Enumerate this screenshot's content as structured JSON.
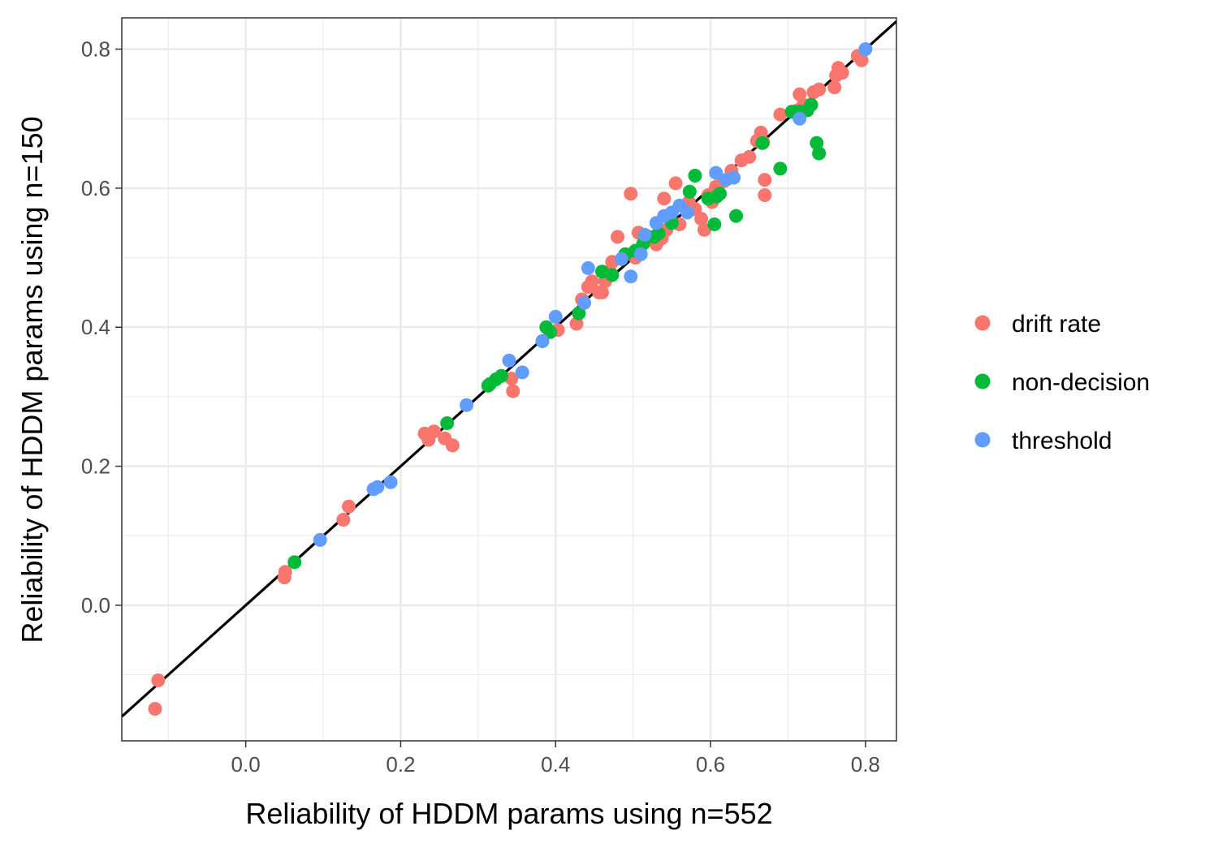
{
  "chart_data": {
    "type": "scatter",
    "xlabel": "Reliability of HDDM params using n=552",
    "ylabel": "Reliability of HDDM params using n=150",
    "xlim": [
      -0.16,
      0.84
    ],
    "ylim": [
      -0.195,
      0.845
    ],
    "x_ticks": [
      0.0,
      0.2,
      0.4,
      0.6,
      0.8
    ],
    "x_tick_labels": [
      "0.0",
      "0.2",
      "0.4",
      "0.6",
      "0.8"
    ],
    "y_ticks": [
      0.0,
      0.2,
      0.4,
      0.6,
      0.8
    ],
    "y_tick_labels": [
      "0.0",
      "0.2",
      "0.4",
      "0.6",
      "0.8"
    ],
    "grid": true,
    "legend_position": "right",
    "reference_line": {
      "slope": 1,
      "intercept": 0,
      "color": "#000000"
    },
    "series": [
      {
        "name": "drift rate",
        "color": "#F8766D",
        "points": [
          [
            -0.113,
            -0.108
          ],
          [
            -0.117,
            -0.149
          ],
          [
            0.05,
            0.04
          ],
          [
            0.051,
            0.048
          ],
          [
            0.126,
            0.123
          ],
          [
            0.133,
            0.142
          ],
          [
            0.231,
            0.247
          ],
          [
            0.236,
            0.238
          ],
          [
            0.243,
            0.25
          ],
          [
            0.257,
            0.24
          ],
          [
            0.267,
            0.23
          ],
          [
            0.343,
            0.326
          ],
          [
            0.345,
            0.308
          ],
          [
            0.403,
            0.396
          ],
          [
            0.427,
            0.405
          ],
          [
            0.434,
            0.44
          ],
          [
            0.442,
            0.458
          ],
          [
            0.447,
            0.466
          ],
          [
            0.456,
            0.45
          ],
          [
            0.46,
            0.45
          ],
          [
            0.464,
            0.466
          ],
          [
            0.47,
            0.48
          ],
          [
            0.473,
            0.494
          ],
          [
            0.48,
            0.53
          ],
          [
            0.497,
            0.592
          ],
          [
            0.503,
            0.5
          ],
          [
            0.507,
            0.536
          ],
          [
            0.52,
            0.53
          ],
          [
            0.53,
            0.519
          ],
          [
            0.537,
            0.528
          ],
          [
            0.54,
            0.585
          ],
          [
            0.543,
            0.54
          ],
          [
            0.55,
            0.55
          ],
          [
            0.555,
            0.607
          ],
          [
            0.56,
            0.548
          ],
          [
            0.572,
            0.58
          ],
          [
            0.58,
            0.57
          ],
          [
            0.588,
            0.556
          ],
          [
            0.592,
            0.54
          ],
          [
            0.597,
            0.59
          ],
          [
            0.602,
            0.58
          ],
          [
            0.607,
            0.602
          ],
          [
            0.617,
            0.61
          ],
          [
            0.627,
            0.625
          ],
          [
            0.64,
            0.64
          ],
          [
            0.65,
            0.645
          ],
          [
            0.66,
            0.668
          ],
          [
            0.665,
            0.68
          ],
          [
            0.668,
            0.666
          ],
          [
            0.67,
            0.612
          ],
          [
            0.67,
            0.59
          ],
          [
            0.69,
            0.706
          ],
          [
            0.712,
            0.712
          ],
          [
            0.715,
            0.735
          ],
          [
            0.72,
            0.72
          ],
          [
            0.733,
            0.738
          ],
          [
            0.74,
            0.742
          ],
          [
            0.76,
            0.745
          ],
          [
            0.762,
            0.762
          ],
          [
            0.765,
            0.773
          ],
          [
            0.77,
            0.766
          ],
          [
            0.79,
            0.79
          ],
          [
            0.795,
            0.784
          ]
        ]
      },
      {
        "name": "non-decision",
        "color": "#00BA38",
        "points": [
          [
            0.063,
            0.062
          ],
          [
            0.26,
            0.262
          ],
          [
            0.313,
            0.316
          ],
          [
            0.315,
            0.318
          ],
          [
            0.323,
            0.325
          ],
          [
            0.33,
            0.33
          ],
          [
            0.383,
            0.38
          ],
          [
            0.388,
            0.4
          ],
          [
            0.393,
            0.393
          ],
          [
            0.43,
            0.42
          ],
          [
            0.46,
            0.48
          ],
          [
            0.473,
            0.475
          ],
          [
            0.49,
            0.505
          ],
          [
            0.503,
            0.51
          ],
          [
            0.513,
            0.52
          ],
          [
            0.527,
            0.53
          ],
          [
            0.533,
            0.535
          ],
          [
            0.55,
            0.55
          ],
          [
            0.573,
            0.595
          ],
          [
            0.58,
            0.618
          ],
          [
            0.597,
            0.585
          ],
          [
            0.605,
            0.548
          ],
          [
            0.608,
            0.588
          ],
          [
            0.612,
            0.592
          ],
          [
            0.633,
            0.56
          ],
          [
            0.667,
            0.665
          ],
          [
            0.69,
            0.628
          ],
          [
            0.705,
            0.71
          ],
          [
            0.715,
            0.71
          ],
          [
            0.725,
            0.712
          ],
          [
            0.73,
            0.72
          ],
          [
            0.737,
            0.665
          ],
          [
            0.74,
            0.65
          ]
        ]
      },
      {
        "name": "threshold",
        "color": "#619CFF",
        "points": [
          [
            0.096,
            0.094
          ],
          [
            0.165,
            0.167
          ],
          [
            0.17,
            0.17
          ],
          [
            0.187,
            0.177
          ],
          [
            0.285,
            0.288
          ],
          [
            0.34,
            0.352
          ],
          [
            0.357,
            0.335
          ],
          [
            0.383,
            0.38
          ],
          [
            0.4,
            0.415
          ],
          [
            0.437,
            0.435
          ],
          [
            0.442,
            0.485
          ],
          [
            0.485,
            0.498
          ],
          [
            0.497,
            0.473
          ],
          [
            0.51,
            0.505
          ],
          [
            0.515,
            0.533
          ],
          [
            0.53,
            0.55
          ],
          [
            0.54,
            0.56
          ],
          [
            0.55,
            0.565
          ],
          [
            0.56,
            0.575
          ],
          [
            0.57,
            0.565
          ],
          [
            0.607,
            0.622
          ],
          [
            0.62,
            0.612
          ],
          [
            0.63,
            0.615
          ],
          [
            0.715,
            0.7
          ],
          [
            0.8,
            0.8
          ]
        ]
      }
    ]
  }
}
